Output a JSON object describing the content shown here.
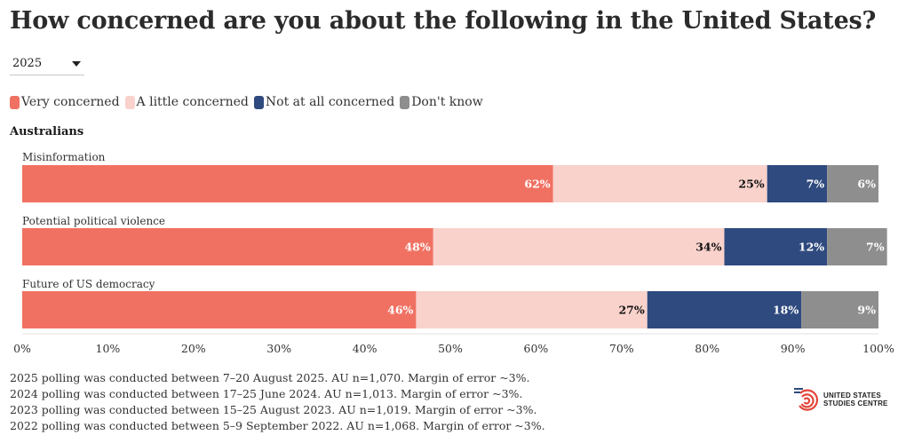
{
  "title": "How concerned are you about the following in the United States?",
  "year_select": {
    "selected": "2025"
  },
  "legend": [
    {
      "label": "Very concerned",
      "color": "#f07162"
    },
    {
      "label": "A little concerned",
      "color": "#f9d2cc"
    },
    {
      "label": "Not at all concerned",
      "color": "#2f4a7e"
    },
    {
      "label": "Don't know",
      "color": "#8e8e8e"
    }
  ],
  "chart_data": {
    "type": "bar",
    "orientation": "horizontal",
    "stacked": true,
    "group": "Australians",
    "categories": [
      "Misinformation",
      "Potential political violence",
      "Future of US democracy"
    ],
    "series": [
      {
        "name": "Very concerned",
        "values": [
          62,
          48,
          46
        ],
        "color": "#f07162"
      },
      {
        "name": "A little concerned",
        "values": [
          25,
          34,
          27
        ],
        "color": "#f9d2cc"
      },
      {
        "name": "Not at all concerned",
        "values": [
          7,
          12,
          18
        ],
        "color": "#2f4a7e"
      },
      {
        "name": "Don't know",
        "values": [
          6,
          7,
          9
        ],
        "color": "#8e8e8e"
      }
    ],
    "xlim": [
      0,
      100
    ],
    "xticks": [
      "0%",
      "10%",
      "20%",
      "30%",
      "40%",
      "50%",
      "60%",
      "70%",
      "80%",
      "90%",
      "100%"
    ],
    "value_suffix": "%"
  },
  "footnotes": [
    "2025 polling was conducted between 7–20 August 2025. AU n=1,070. Margin of error ~3%.",
    "2024 polling was conducted between 17–25 June 2024. AU n=1,013. Margin of error ~3%.",
    "2023 polling was conducted between 15–25 August 2023. AU n=1,019. Margin of error ~3%.",
    "2022 polling was conducted between 5–9 September 2022. AU n=1,068. Margin of error ~3%."
  ],
  "logo": {
    "line1": "UNITED STATES",
    "line2": "STUDIES CENTRE"
  }
}
